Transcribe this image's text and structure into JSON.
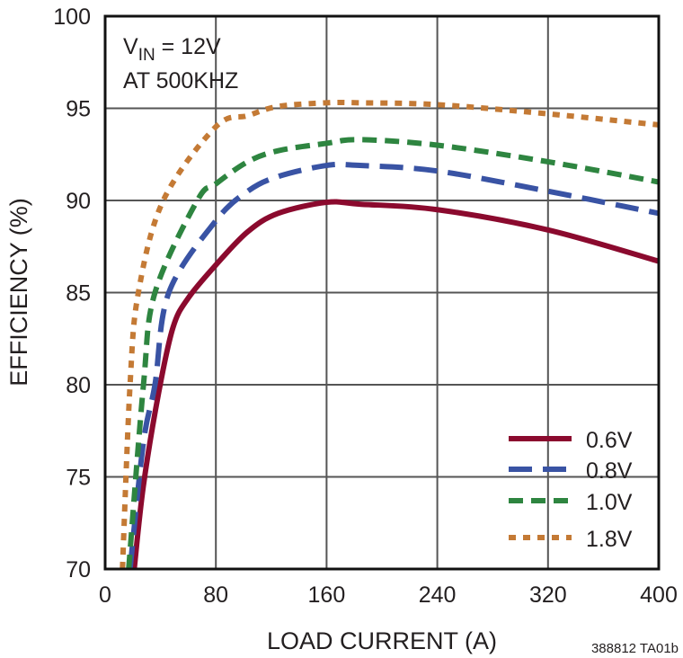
{
  "chart_data": {
    "type": "line",
    "xlabel": "LOAD CURRENT (A)",
    "ylabel": "EFFICIENCY (%)",
    "xlim": [
      0,
      400
    ],
    "ylim": [
      70,
      100
    ],
    "xticks": [
      "0",
      "80",
      "160",
      "240",
      "320",
      "400"
    ],
    "yticks": [
      "70",
      "75",
      "80",
      "85",
      "90",
      "95",
      "100"
    ],
    "grid": true,
    "legend_position": "bottom-right",
    "annotation": {
      "line1_main": "V",
      "line1_sub": "IN",
      "line1_rest": " = 12V",
      "line2": "AT 500KHZ"
    },
    "footnote": "388812 TA01b",
    "series": [
      {
        "name": "0.6V",
        "color": "#8b0a2e",
        "style": "solid",
        "x": [
          21,
          27.6,
          38.5,
          49,
          60,
          80,
          103,
          125,
          160,
          184,
          240,
          320,
          400
        ],
        "y": [
          70,
          74.5,
          79.5,
          83.1,
          84.7,
          86.5,
          88.3,
          89.3,
          89.9,
          89.8,
          89.5,
          88.4,
          86.7
        ]
      },
      {
        "name": "0.8V",
        "color": "#3953a4",
        "style": "long-dash",
        "x": [
          18,
          27.7,
          36,
          46,
          80,
          103,
          125,
          160,
          184,
          240,
          320,
          400
        ],
        "y": [
          70,
          76.9,
          80,
          85,
          88.9,
          90.5,
          91.3,
          91.9,
          91.9,
          91.6,
          90.5,
          89.3
        ]
      },
      {
        "name": "1.0V",
        "color": "#2e8540",
        "style": "dash",
        "x": [
          17,
          27.7,
          36,
          66.6,
          80,
          103,
          125,
          160,
          184,
          240,
          320,
          400
        ],
        "y": [
          70,
          80,
          85,
          90,
          90.9,
          92.1,
          92.7,
          93.1,
          93.3,
          93.0,
          92.1,
          91.0
        ]
      },
      {
        "name": "1.8V",
        "color": "#c47a35",
        "style": "dot",
        "x": [
          12.5,
          18,
          24,
          42,
          80,
          103,
          125,
          160,
          184,
          240,
          320,
          400
        ],
        "y": [
          70,
          80,
          85,
          90,
          94.0,
          94.6,
          95.1,
          95.3,
          95.3,
          95.2,
          94.7,
          94.1
        ]
      }
    ]
  }
}
